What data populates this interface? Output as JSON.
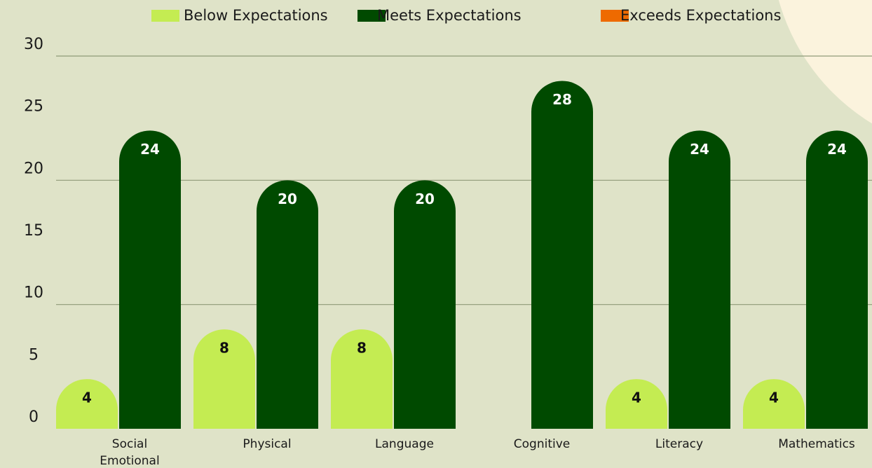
{
  "chart_data": {
    "type": "bar",
    "categories": [
      "Social Emotional",
      "Physical",
      "Language",
      "Cognitive",
      "Literacy",
      "Mathematics"
    ],
    "series": [
      {
        "name": "Below Expectations",
        "color": "#c4ec52",
        "values": [
          4,
          8,
          8,
          null,
          4,
          4
        ]
      },
      {
        "name": "Meets Expectations",
        "color": "#004a00",
        "values": [
          24,
          20,
          20,
          28,
          24,
          24
        ]
      },
      {
        "name": "Exceeds Expectations",
        "color": "#ee6a00",
        "values": [
          null,
          null,
          null,
          null,
          null,
          null
        ]
      }
    ],
    "ylim": [
      0,
      30
    ],
    "yticks": [
      0,
      5,
      10,
      15,
      20,
      25,
      30
    ],
    "grid": true,
    "legend": "top"
  }
}
